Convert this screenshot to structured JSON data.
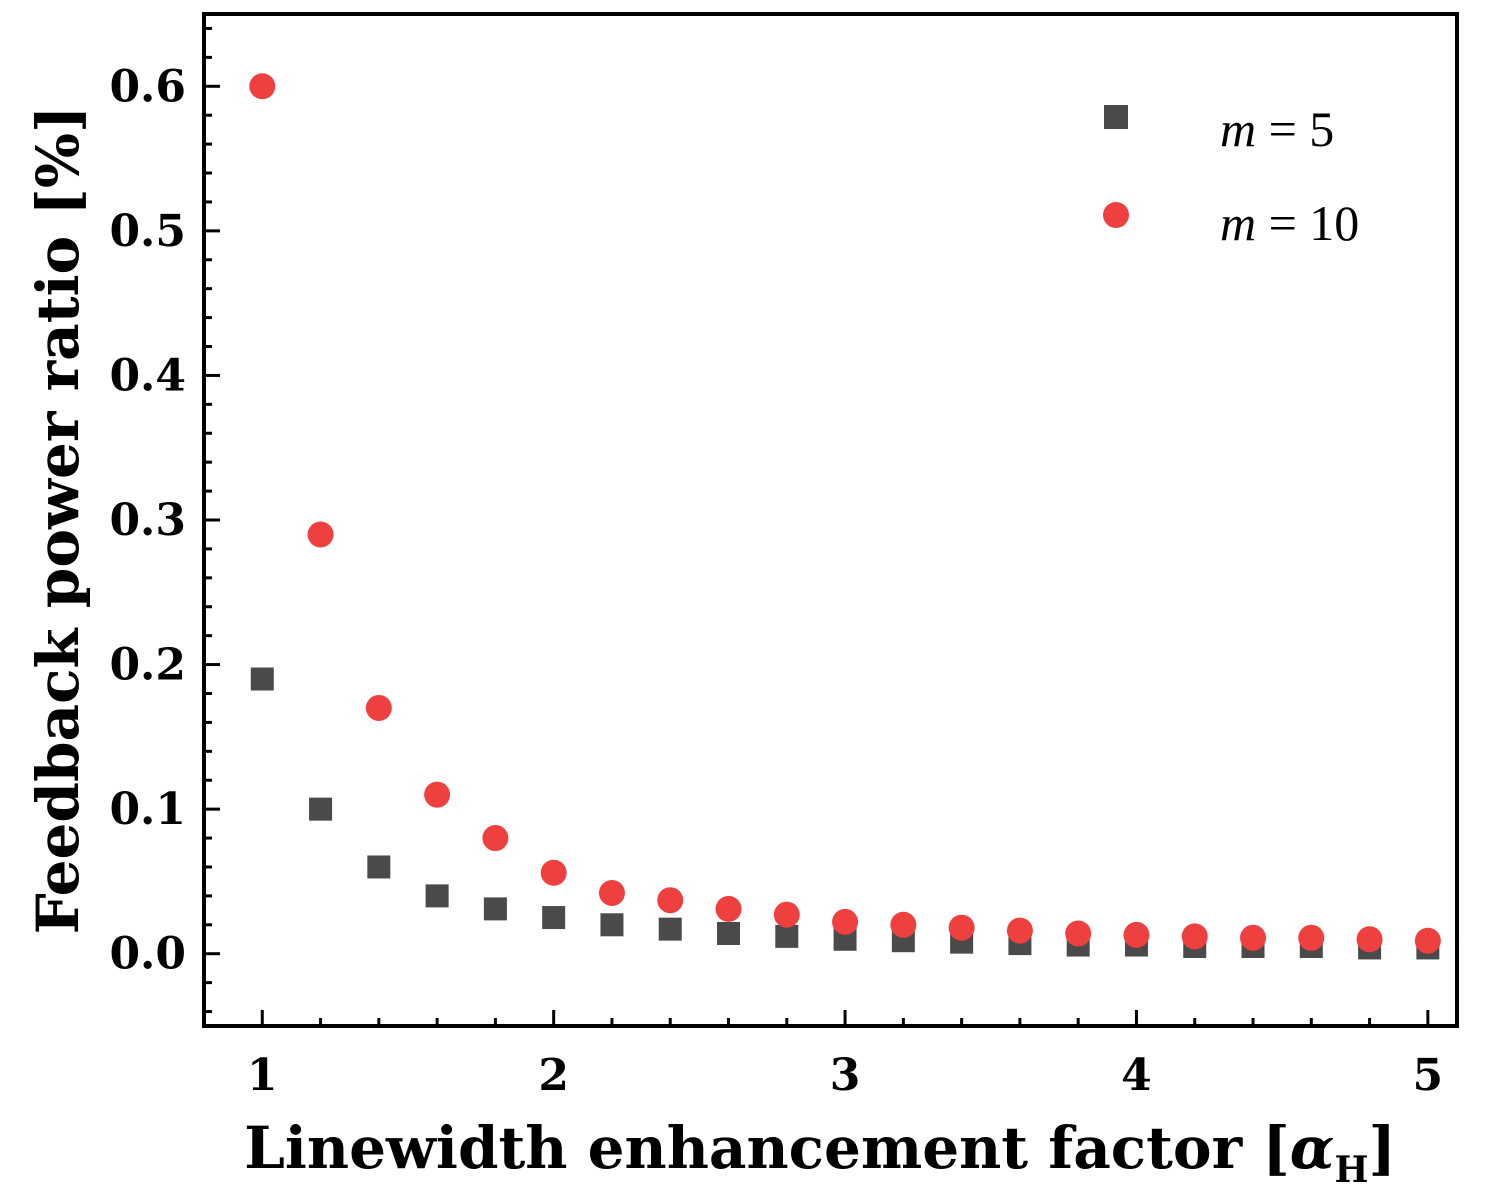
{
  "chart_data": {
    "type": "scatter",
    "title": "",
    "xlabel": "Linewidth enhancement factor [",
    "xlabel_symbol": "α",
    "xlabel_subscript": "H",
    "xlabel_close": "]",
    "ylabel": "Feedback power ratio [%]",
    "xlim": [
      0.8,
      5.1
    ],
    "ylim": [
      -0.05,
      0.65
    ],
    "xticks": [
      1,
      2,
      3,
      4,
      5
    ],
    "xtick_labels": [
      "1",
      "2",
      "3",
      "4",
      "5"
    ],
    "yticks": [
      0.0,
      0.1,
      0.2,
      0.3,
      0.4,
      0.5,
      0.6
    ],
    "ytick_labels": [
      "0.0",
      "0.1",
      "0.2",
      "0.3",
      "0.4",
      "0.5",
      "0.6"
    ],
    "grid": false,
    "legend_position": "top-right",
    "x": [
      1.0,
      1.2,
      1.4,
      1.6,
      1.8,
      2.0,
      2.2,
      2.4,
      2.6,
      2.8,
      3.0,
      3.2,
      3.4,
      3.6,
      3.8,
      4.0,
      4.2,
      4.4,
      4.6,
      4.8,
      5.0
    ],
    "series": [
      {
        "name": "m = 5",
        "legend_var": "m",
        "legend_rest": " = 5",
        "marker": "square",
        "color": "#4a4a4a",
        "values": [
          0.19,
          0.1,
          0.06,
          0.04,
          0.031,
          0.025,
          0.02,
          0.017,
          0.014,
          0.012,
          0.01,
          0.009,
          0.008,
          0.007,
          0.006,
          0.006,
          0.005,
          0.005,
          0.005,
          0.004,
          0.004
        ]
      },
      {
        "name": "m = 10",
        "legend_var": "m",
        "legend_rest": " = 10",
        "marker": "circle",
        "color": "#ef4040",
        "values": [
          0.6,
          0.29,
          0.17,
          0.11,
          0.08,
          0.056,
          0.042,
          0.037,
          0.031,
          0.027,
          0.022,
          0.02,
          0.018,
          0.016,
          0.014,
          0.013,
          0.012,
          0.011,
          0.011,
          0.01,
          0.009
        ]
      }
    ]
  }
}
